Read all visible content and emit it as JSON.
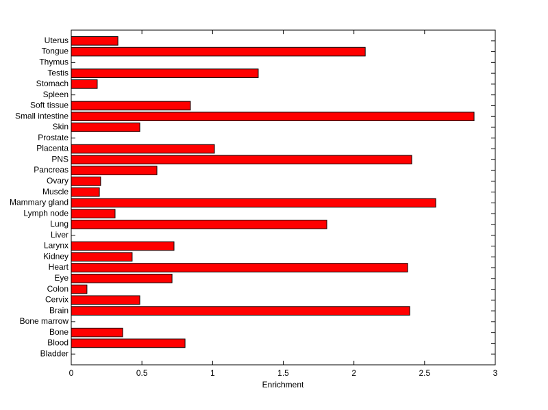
{
  "chart_data": {
    "type": "barh",
    "xlabel": "Enrichment",
    "categories": [
      "Bladder",
      "Blood",
      "Bone",
      "Bone marrow",
      "Brain",
      "Cervix",
      "Colon",
      "Eye",
      "Heart",
      "Kidney",
      "Larynx",
      "Liver",
      "Lung",
      "Lymph node",
      "Mammary gland",
      "Muscle",
      "Ovary",
      "Pancreas",
      "PNS",
      "Placenta",
      "Prostate",
      "Skin",
      "Small intestine",
      "Soft tissue",
      "Spleen",
      "Stomach",
      "Testis",
      "Thymus",
      "Tongue",
      "Uterus"
    ],
    "values": [
      0,
      0.805,
      0.364,
      0,
      2.395,
      0.485,
      0.111,
      0.713,
      2.38,
      0.431,
      0.727,
      0,
      1.808,
      0.31,
      2.579,
      0.199,
      0.208,
      0.606,
      2.409,
      1.013,
      0,
      0.485,
      2.85,
      0.843,
      0,
      0.184,
      1.323,
      0,
      2.08,
      0.33
    ],
    "color": "#ff0000",
    "xlim": [
      0,
      3
    ],
    "xticks": [
      0,
      0.5,
      1,
      1.5,
      2,
      2.5,
      3
    ]
  }
}
